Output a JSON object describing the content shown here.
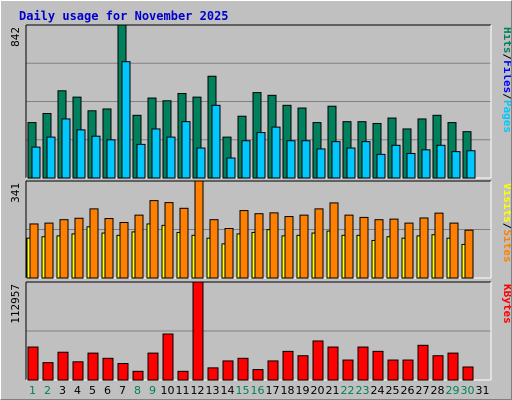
{
  "title": "Daily usage for November 2025",
  "colors": {
    "background": "#c0c0c0",
    "plot": "#c0c0c0",
    "title": "#0000cc",
    "hits": "#00805c",
    "files": "#0000ff",
    "pages": "#00c8ff",
    "visits": "#ff8000",
    "sites": "#ffff00",
    "kbytes": "#ff0000",
    "day_normal": "#000000",
    "day_weekend": "#00805c"
  },
  "chart_data": [
    {
      "type": "bar",
      "name": "hits-files-pages",
      "ylim": [
        0,
        842
      ],
      "max_label": "842",
      "ylabel_parts": [
        "Pages",
        "/",
        "Files",
        "/",
        "Hits"
      ],
      "categories": [
        "1",
        "2",
        "3",
        "4",
        "5",
        "6",
        "7",
        "8",
        "9",
        "10",
        "11",
        "12",
        "13",
        "14",
        "15",
        "16",
        "17",
        "18",
        "19",
        "20",
        "21",
        "22",
        "23",
        "24",
        "25",
        "26",
        "27",
        "28",
        "29",
        "30",
        "31"
      ],
      "series": [
        {
          "name": "Hits",
          "values": [
            305,
            355,
            480,
            445,
            370,
            380,
            842,
            345,
            440,
            425,
            465,
            445,
            560,
            225,
            340,
            470,
            455,
            400,
            385,
            305,
            395,
            310,
            310,
            300,
            330,
            270,
            325,
            345,
            305,
            255,
            0
          ]
        },
        {
          "name": "Files",
          "values": [
            0,
            0,
            0,
            0,
            0,
            0,
            0,
            0,
            0,
            0,
            0,
            0,
            0,
            0,
            0,
            0,
            0,
            0,
            0,
            0,
            0,
            0,
            0,
            0,
            0,
            0,
            0,
            0,
            0,
            0,
            0
          ]
        },
        {
          "name": "Pages",
          "values": [
            170,
            225,
            325,
            265,
            230,
            210,
            640,
            185,
            270,
            225,
            310,
            165,
            400,
            110,
            205,
            250,
            280,
            205,
            205,
            160,
            200,
            165,
            200,
            130,
            180,
            135,
            155,
            180,
            145,
            150,
            0
          ]
        }
      ]
    },
    {
      "type": "bar",
      "name": "visits-sites",
      "ylim": [
        0,
        341
      ],
      "max_label": "341",
      "ylabel_parts": [
        "Sites",
        "/",
        "Visits"
      ],
      "categories": [
        "1",
        "2",
        "3",
        "4",
        "5",
        "6",
        "7",
        "8",
        "9",
        "10",
        "11",
        "12",
        "13",
        "14",
        "15",
        "16",
        "17",
        "18",
        "19",
        "20",
        "21",
        "22",
        "23",
        "24",
        "25",
        "26",
        "27",
        "28",
        "29",
        "30",
        "31"
      ],
      "series": [
        {
          "name": "Visits",
          "values": [
            190,
            193,
            205,
            210,
            243,
            209,
            195,
            221,
            272,
            265,
            245,
            341,
            205,
            174,
            237,
            226,
            229,
            216,
            221,
            243,
            264,
            221,
            213,
            205,
            207,
            193,
            211,
            228,
            193,
            168,
            0
          ]
        },
        {
          "name": "Sites",
          "values": [
            140,
            145,
            148,
            155,
            180,
            158,
            150,
            162,
            190,
            185,
            160,
            150,
            140,
            120,
            155,
            160,
            170,
            148,
            150,
            158,
            165,
            150,
            150,
            132,
            145,
            140,
            148,
            152,
            140,
            118,
            0
          ]
        }
      ]
    },
    {
      "type": "bar",
      "name": "kbytes",
      "ylim": [
        0,
        112957
      ],
      "max_label": "112957",
      "ylabel_parts": [
        "KBytes"
      ],
      "categories": [
        "1",
        "2",
        "3",
        "4",
        "5",
        "6",
        "7",
        "8",
        "9",
        "10",
        "11",
        "12",
        "13",
        "14",
        "15",
        "16",
        "17",
        "18",
        "19",
        "20",
        "21",
        "22",
        "23",
        "24",
        "25",
        "26",
        "27",
        "28",
        "29",
        "30",
        "31"
      ],
      "series": [
        {
          "name": "KBytes",
          "values": [
            38000,
            20000,
            32000,
            21000,
            31000,
            25000,
            19000,
            10000,
            31000,
            53000,
            10000,
            112957,
            14000,
            22000,
            25000,
            12000,
            22000,
            33000,
            28000,
            45000,
            38000,
            23000,
            38000,
            33000,
            23000,
            23000,
            40000,
            28000,
            31000,
            15000,
            0
          ]
        }
      ]
    }
  ],
  "days": [
    {
      "label": "1",
      "weekend": true
    },
    {
      "label": "2",
      "weekend": true
    },
    {
      "label": "3",
      "weekend": false
    },
    {
      "label": "4",
      "weekend": false
    },
    {
      "label": "5",
      "weekend": false
    },
    {
      "label": "6",
      "weekend": false
    },
    {
      "label": "7",
      "weekend": false
    },
    {
      "label": "8",
      "weekend": true
    },
    {
      "label": "9",
      "weekend": true
    },
    {
      "label": "10",
      "weekend": false
    },
    {
      "label": "11",
      "weekend": false
    },
    {
      "label": "12",
      "weekend": false
    },
    {
      "label": "13",
      "weekend": false
    },
    {
      "label": "14",
      "weekend": false
    },
    {
      "label": "15",
      "weekend": true
    },
    {
      "label": "16",
      "weekend": true
    },
    {
      "label": "17",
      "weekend": false
    },
    {
      "label": "18",
      "weekend": false
    },
    {
      "label": "19",
      "weekend": false
    },
    {
      "label": "20",
      "weekend": false
    },
    {
      "label": "21",
      "weekend": false
    },
    {
      "label": "22",
      "weekend": true
    },
    {
      "label": "23",
      "weekend": true
    },
    {
      "label": "24",
      "weekend": false
    },
    {
      "label": "25",
      "weekend": false
    },
    {
      "label": "26",
      "weekend": false
    },
    {
      "label": "27",
      "weekend": false
    },
    {
      "label": "28",
      "weekend": false
    },
    {
      "label": "29",
      "weekend": true
    },
    {
      "label": "30",
      "weekend": true
    },
    {
      "label": "31",
      "weekend": false
    }
  ]
}
